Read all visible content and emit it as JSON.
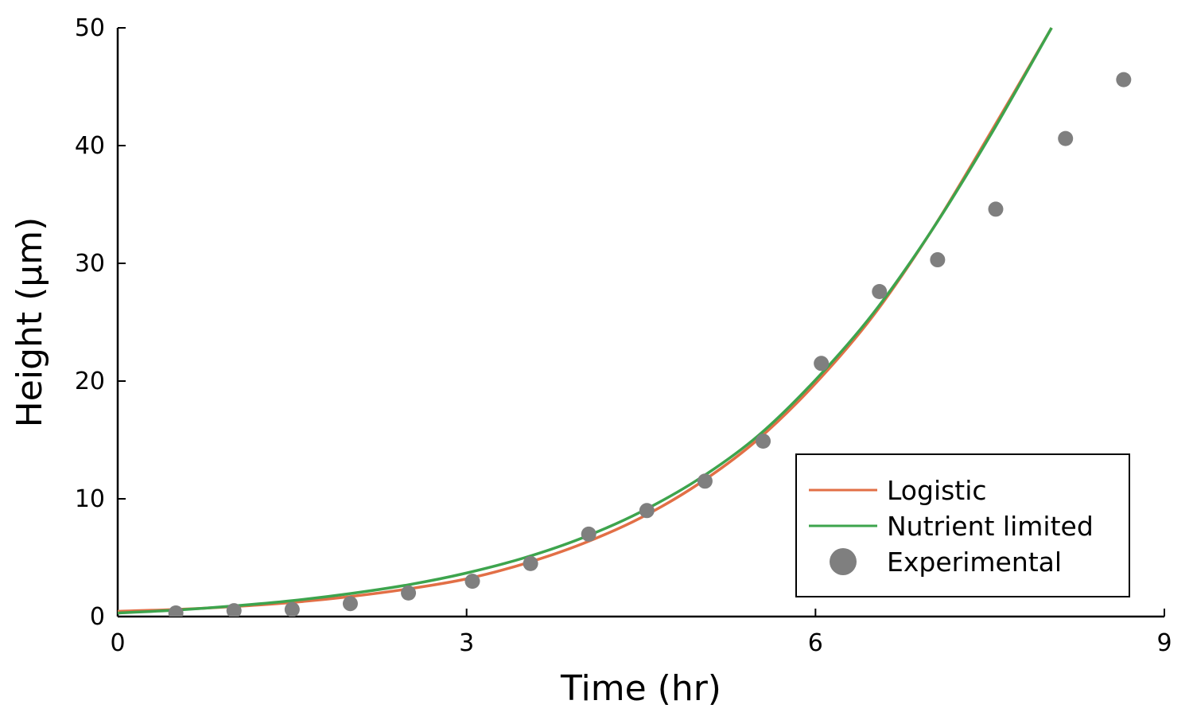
{
  "chart_data": {
    "type": "line",
    "title": "",
    "xlabel": "Time (hr)",
    "ylabel": "Height (μm)",
    "xlim": [
      0,
      9
    ],
    "ylim": [
      0,
      50
    ],
    "xticks": [
      0,
      3,
      6,
      9
    ],
    "yticks": [
      0,
      10,
      20,
      30,
      40,
      50
    ],
    "grid": false,
    "legend_position": "bottom-right",
    "series": [
      {
        "name": "Logistic",
        "kind": "line",
        "color": "#e26f46",
        "x": [
          0,
          0.5,
          1,
          1.5,
          2,
          2.5,
          3,
          3.5,
          4,
          4.5,
          5,
          5.5,
          6,
          6.5,
          7,
          7.5,
          8.03
        ],
        "y": [
          0.45,
          0.6,
          0.85,
          1.2,
          1.7,
          2.35,
          3.2,
          4.5,
          6.2,
          8.4,
          11.3,
          15.0,
          19.8,
          25.6,
          32.8,
          41.0,
          50.0
        ]
      },
      {
        "name": "Nutrient limited",
        "kind": "line",
        "color": "#3da44d",
        "x": [
          0,
          0.5,
          1,
          1.5,
          2,
          2.5,
          3,
          3.5,
          4,
          4.5,
          5,
          5.5,
          6,
          6.5,
          7,
          7.5,
          8.03
        ],
        "y": [
          0.3,
          0.55,
          0.9,
          1.35,
          1.95,
          2.7,
          3.7,
          5.0,
          6.7,
          8.9,
          11.7,
          15.3,
          20.1,
          25.8,
          32.8,
          40.8,
          50.0
        ]
      },
      {
        "name": "Experimental",
        "kind": "scatter",
        "color": "#7f7f7f",
        "x": [
          0.5,
          1.0,
          1.5,
          2.0,
          2.5,
          3.05,
          3.55,
          4.05,
          4.55,
          5.05,
          5.55,
          6.05,
          6.55,
          7.05,
          7.55,
          8.15,
          8.65
        ],
        "y": [
          0.3,
          0.5,
          0.6,
          1.1,
          2.0,
          3.0,
          4.5,
          7.0,
          9.0,
          11.5,
          14.9,
          21.5,
          27.6,
          30.3,
          34.6,
          40.6,
          45.6
        ]
      }
    ]
  }
}
